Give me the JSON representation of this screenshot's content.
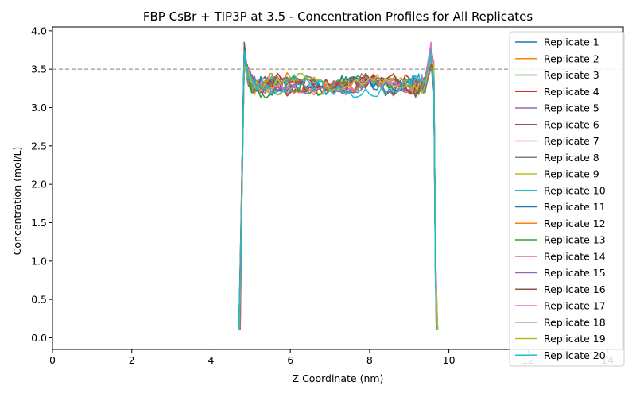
{
  "chart_data": {
    "type": "line",
    "title": "FBP CsBr + TIP3P at 3.5 - Concentration Profiles for All Replicates",
    "xlabel": "Z Coordinate (nm)",
    "ylabel": "Concentration (mol/L)",
    "xlim": [
      0,
      14.4
    ],
    "ylim": [
      -0.15,
      4.05
    ],
    "xticks": [
      0,
      2,
      4,
      6,
      8,
      10,
      12,
      14
    ],
    "yticks": [
      0.0,
      0.5,
      1.0,
      1.5,
      2.0,
      2.5,
      3.0,
      3.5,
      4.0
    ],
    "tick_labels_x": [
      "0",
      "2",
      "4",
      "6",
      "8",
      "10",
      "12",
      "14"
    ],
    "tick_labels_y": [
      "0.0",
      "0.5",
      "1.0",
      "1.5",
      "2.0",
      "2.5",
      "3.0",
      "3.5",
      "4.0"
    ],
    "reference_line": {
      "y": 3.5,
      "style": "dashed",
      "color": "#808080"
    },
    "legend_position": "right",
    "profile": {
      "x": [
        4.72,
        4.78,
        4.84,
        4.92,
        5.05,
        5.3,
        5.6,
        6.0,
        6.5,
        7.0,
        7.5,
        8.0,
        8.5,
        9.0,
        9.2,
        9.4,
        9.55,
        9.62,
        9.66,
        9.7
      ],
      "y": [
        0.1,
        2.0,
        3.6,
        3.45,
        3.3,
        3.28,
        3.3,
        3.3,
        3.29,
        3.3,
        3.29,
        3.28,
        3.3,
        3.28,
        3.27,
        3.3,
        3.6,
        3.4,
        1.0,
        0.1
      ]
    },
    "series": [
      {
        "name": "Replicate 1",
        "color": "#1f77b4",
        "peak_left": 3.7,
        "peak_right": 3.78
      },
      {
        "name": "Replicate 2",
        "color": "#ff7f0e",
        "peak_left": 3.62,
        "peak_right": 3.7
      },
      {
        "name": "Replicate 3",
        "color": "#2ca02c",
        "peak_left": 3.58,
        "peak_right": 3.66
      },
      {
        "name": "Replicate 4",
        "color": "#d62728",
        "peak_left": 3.75,
        "peak_right": 3.72
      },
      {
        "name": "Replicate 5",
        "color": "#9467bd",
        "peak_left": 3.66,
        "peak_right": 3.8
      },
      {
        "name": "Replicate 6",
        "color": "#8c564b",
        "peak_left": 3.85,
        "peak_right": 3.6
      },
      {
        "name": "Replicate 7",
        "color": "#e377c2",
        "peak_left": 3.64,
        "peak_right": 3.85
      },
      {
        "name": "Replicate 8",
        "color": "#7f7f7f",
        "peak_left": 3.6,
        "peak_right": 3.55
      },
      {
        "name": "Replicate 9",
        "color": "#bcbd22",
        "peak_left": 3.55,
        "peak_right": 3.62
      },
      {
        "name": "Replicate 10",
        "color": "#17becf",
        "peak_left": 3.68,
        "peak_right": 3.74
      },
      {
        "name": "Replicate 11",
        "color": "#1f77b4",
        "peak_left": 3.8,
        "peak_right": 3.65
      },
      {
        "name": "Replicate 12",
        "color": "#ff7f0e",
        "peak_left": 3.57,
        "peak_right": 3.58
      },
      {
        "name": "Replicate 13",
        "color": "#2ca02c",
        "peak_left": 3.63,
        "peak_right": 3.6
      },
      {
        "name": "Replicate 14",
        "color": "#d62728",
        "peak_left": 3.72,
        "peak_right": 3.68
      },
      {
        "name": "Replicate 15",
        "color": "#9467bd",
        "peak_left": 3.61,
        "peak_right": 3.64
      },
      {
        "name": "Replicate 16",
        "color": "#8c564b",
        "peak_left": 3.77,
        "peak_right": 3.57
      },
      {
        "name": "Replicate 17",
        "color": "#e377c2",
        "peak_left": 3.59,
        "peak_right": 3.69
      },
      {
        "name": "Replicate 18",
        "color": "#7f7f7f",
        "peak_left": 3.67,
        "peak_right": 3.52
      },
      {
        "name": "Replicate 19",
        "color": "#bcbd22",
        "peak_left": 3.56,
        "peak_right": 3.63
      },
      {
        "name": "Replicate 20",
        "color": "#17becf",
        "peak_left": 3.74,
        "peak_right": 3.66
      }
    ]
  }
}
